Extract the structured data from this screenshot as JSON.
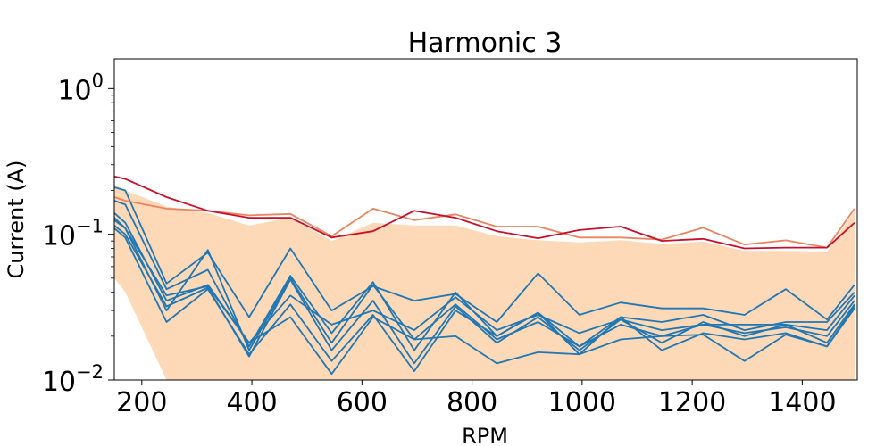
{
  "chart_data": {
    "type": "line",
    "title": "Harmonic 3",
    "xlabel": "RPM",
    "ylabel": "Current (A)",
    "yscale": "log",
    "xlim": [
      150,
      1500
    ],
    "ylim": [
      0.01,
      1.6
    ],
    "x_ticks": [
      200,
      400,
      600,
      800,
      1000,
      1200,
      1400
    ],
    "x_tick_labels": [
      "200",
      "400",
      "600",
      "800",
      "1000",
      "1200",
      "1400"
    ],
    "y_ticks": [
      0.01,
      0.1,
      1
    ],
    "y_tick_labels": [
      {
        "base": "10",
        "exp": "−2"
      },
      {
        "base": "10",
        "exp": "−1"
      },
      {
        "base": "10",
        "exp": "0"
      }
    ],
    "grid": false,
    "colors": {
      "band": "#fdd9b8",
      "red": "#c8102e",
      "salmon": "#e8855f",
      "blue": "#1f77b4"
    },
    "x": [
      150,
      170,
      245,
      320,
      395,
      470,
      545,
      620,
      695,
      770,
      845,
      920,
      995,
      1070,
      1145,
      1220,
      1295,
      1370,
      1445,
      1495
    ],
    "band": {
      "upper": [
        0.22,
        0.2,
        0.155,
        0.14,
        0.115,
        0.13,
        0.09,
        0.12,
        0.115,
        0.115,
        0.097,
        0.091,
        0.088,
        0.091,
        0.086,
        0.089,
        0.077,
        0.077,
        0.076,
        0.145
      ],
      "lower": [
        0.05,
        0.04,
        0.01,
        0.01,
        0.01,
        0.01,
        0.01,
        0.01,
        0.01,
        0.01,
        0.01,
        0.01,
        0.01,
        0.01,
        0.01,
        0.01,
        0.01,
        0.01,
        0.01,
        0.01
      ]
    },
    "series": [
      {
        "color": "red",
        "values": [
          0.25,
          0.24,
          0.18,
          0.145,
          0.13,
          0.13,
          0.095,
          0.105,
          0.145,
          0.13,
          0.105,
          0.094,
          0.107,
          0.113,
          0.09,
          0.093,
          0.08,
          0.081,
          0.081,
          0.12
        ]
      },
      {
        "color": "salmon",
        "values": [
          0.18,
          0.17,
          0.15,
          0.145,
          0.135,
          0.138,
          0.097,
          0.15,
          0.125,
          0.137,
          0.113,
          0.113,
          0.095,
          0.095,
          0.092,
          0.111,
          0.085,
          0.091,
          0.081,
          0.15
        ]
      },
      {
        "color": "blue",
        "values": [
          0.21,
          0.2,
          0.046,
          0.075,
          0.027,
          0.08,
          0.03,
          0.044,
          0.035,
          0.039,
          0.025,
          0.054,
          0.028,
          0.034,
          0.031,
          0.031,
          0.028,
          0.042,
          0.026,
          0.045
        ]
      },
      {
        "color": "blue",
        "values": [
          0.17,
          0.16,
          0.042,
          0.057,
          0.017,
          0.052,
          0.021,
          0.047,
          0.016,
          0.04,
          0.02,
          0.029,
          0.017,
          0.027,
          0.025,
          0.028,
          0.022,
          0.025,
          0.025,
          0.04
        ]
      },
      {
        "color": "blue",
        "values": [
          0.14,
          0.12,
          0.035,
          0.045,
          0.018,
          0.038,
          0.024,
          0.03,
          0.022,
          0.037,
          0.022,
          0.028,
          0.021,
          0.026,
          0.022,
          0.024,
          0.024,
          0.024,
          0.022,
          0.038
        ]
      },
      {
        "color": "blue",
        "values": [
          0.125,
          0.11,
          0.03,
          0.078,
          0.016,
          0.05,
          0.018,
          0.045,
          0.019,
          0.033,
          0.019,
          0.025,
          0.017,
          0.024,
          0.02,
          0.024,
          0.021,
          0.023,
          0.02,
          0.035
        ]
      },
      {
        "color": "blue",
        "values": [
          0.115,
          0.1,
          0.032,
          0.043,
          0.0145,
          0.049,
          0.016,
          0.035,
          0.013,
          0.032,
          0.018,
          0.027,
          0.016,
          0.026,
          0.018,
          0.025,
          0.02,
          0.024,
          0.018,
          0.033
        ]
      },
      {
        "color": "blue",
        "values": [
          0.11,
          0.095,
          0.025,
          0.042,
          0.015,
          0.033,
          0.0135,
          0.028,
          0.0115,
          0.03,
          0.02,
          0.029,
          0.015,
          0.027,
          0.016,
          0.021,
          0.019,
          0.021,
          0.017,
          0.031
        ]
      },
      {
        "color": "blue",
        "values": [
          0.13,
          0.11,
          0.038,
          0.044,
          0.018,
          0.027,
          0.011,
          0.027,
          0.019,
          0.02,
          0.013,
          0.0155,
          0.015,
          0.019,
          0.02,
          0.0205,
          0.0135,
          0.0205,
          0.017,
          0.032
        ]
      }
    ]
  }
}
